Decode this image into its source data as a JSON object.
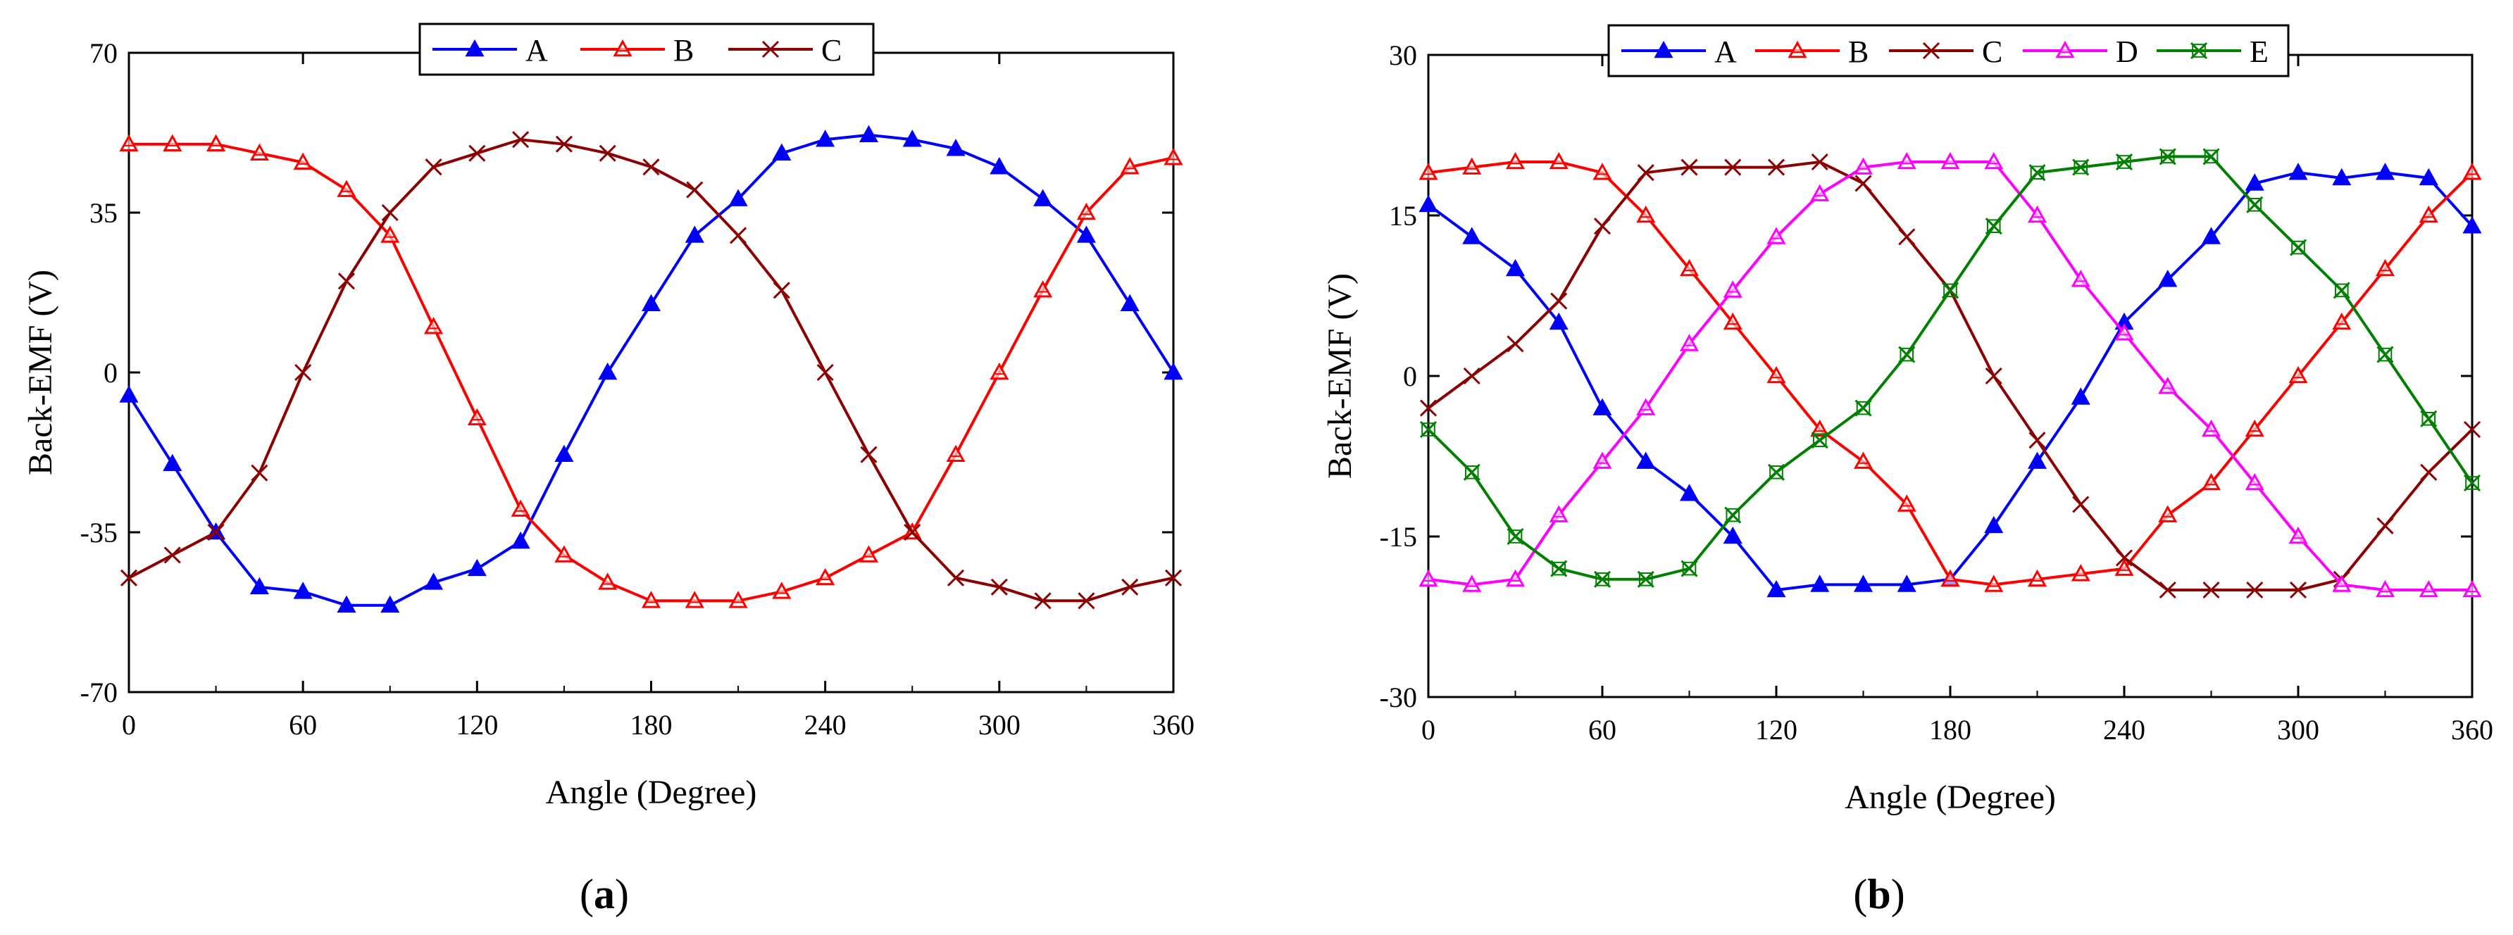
{
  "figure": {
    "panels": [
      {
        "label_open": "(",
        "label_letter": "a",
        "label_close": ")"
      },
      {
        "label_open": "(",
        "label_letter": "b",
        "label_close": ")"
      }
    ]
  },
  "chart_data": [
    {
      "type": "line",
      "panel": "a",
      "title": "",
      "xlabel": "Angle (Degree)",
      "ylabel": "Back-EMF (V)",
      "xlim": [
        0,
        360
      ],
      "ylim": [
        -70,
        70
      ],
      "xticks": [
        0,
        60,
        120,
        180,
        240,
        300,
        360
      ],
      "yticks": [
        -70,
        -35,
        0,
        35,
        70
      ],
      "xtick_labels": [
        "0",
        "60",
        "120",
        "180",
        "240",
        "300",
        "360"
      ],
      "ytick_labels": [
        "-70",
        "-35",
        "0",
        "35",
        "70"
      ],
      "legend_position": "top-center",
      "series": [
        {
          "name": "A",
          "color": "#0000ff",
          "marker": "triangle",
          "x": [
            0,
            15,
            30,
            45,
            60,
            75,
            90,
            105,
            120,
            135,
            150,
            165,
            180,
            195,
            210,
            225,
            240,
            255,
            270,
            285,
            300,
            315,
            330,
            345,
            360
          ],
          "y": [
            -5,
            -20,
            -35,
            -47,
            -48,
            -51,
            -51,
            -46,
            -43,
            -37,
            -18,
            0,
            15,
            30,
            38,
            48,
            51,
            52,
            51,
            49,
            45,
            38,
            30,
            15,
            0
          ]
        },
        {
          "name": "B",
          "color": "#ff0000",
          "marker": "triangle-open",
          "x": [
            0,
            15,
            30,
            45,
            60,
            75,
            90,
            105,
            120,
            135,
            150,
            165,
            180,
            195,
            210,
            225,
            240,
            255,
            270,
            285,
            300,
            315,
            330,
            345,
            360
          ],
          "y": [
            50,
            50,
            50,
            48,
            46,
            40,
            30,
            10,
            -10,
            -30,
            -40,
            -46,
            -50,
            -50,
            -50,
            -48,
            -45,
            -40,
            -35,
            -18,
            0,
            18,
            35,
            45,
            47
          ]
        },
        {
          "name": "C",
          "color": "#8b0000",
          "marker": "x",
          "x": [
            0,
            15,
            30,
            45,
            60,
            75,
            90,
            105,
            120,
            135,
            150,
            165,
            180,
            195,
            210,
            225,
            240,
            255,
            270,
            285,
            300,
            315,
            330,
            345,
            360
          ],
          "y": [
            -45,
            -40,
            -35,
            -22,
            0,
            20,
            35,
            45,
            48,
            51,
            50,
            48,
            45,
            40,
            30,
            18,
            0,
            -18,
            -35,
            -45,
            -47,
            -50,
            -50,
            -47,
            -45
          ]
        }
      ]
    },
    {
      "type": "line",
      "panel": "b",
      "title": "",
      "xlabel": "Angle (Degree)",
      "ylabel": "Back-EMF (V)",
      "xlim": [
        0,
        360
      ],
      "ylim": [
        -30,
        30
      ],
      "xticks": [
        0,
        60,
        120,
        180,
        240,
        300,
        360
      ],
      "yticks": [
        -30,
        -15,
        0,
        15,
        30
      ],
      "xtick_labels": [
        "0",
        "60",
        "120",
        "180",
        "240",
        "300",
        "360"
      ],
      "ytick_labels": [
        "-30",
        "-15",
        "0",
        "15",
        "30"
      ],
      "legend_position": "top-center",
      "series": [
        {
          "name": "A",
          "color": "#0000ff",
          "marker": "triangle",
          "x": [
            0,
            15,
            30,
            45,
            60,
            75,
            90,
            105,
            120,
            135,
            150,
            165,
            180,
            195,
            210,
            225,
            240,
            255,
            270,
            285,
            300,
            315,
            330,
            345,
            360
          ],
          "y": [
            16,
            13,
            10,
            5,
            -3,
            -8,
            -11,
            -15,
            -20,
            -19.5,
            -19.5,
            -19.5,
            -19,
            -14,
            -8,
            -2,
            5,
            9,
            13,
            18,
            19,
            18.5,
            19,
            18.5,
            14
          ]
        },
        {
          "name": "B",
          "color": "#ff0000",
          "marker": "triangle-open",
          "x": [
            0,
            15,
            30,
            45,
            60,
            75,
            90,
            105,
            120,
            135,
            150,
            165,
            180,
            195,
            210,
            225,
            240,
            255,
            270,
            285,
            300,
            315,
            330,
            345,
            360
          ],
          "y": [
            19,
            19.5,
            20,
            20,
            19,
            15,
            10,
            5,
            0,
            -5,
            -8,
            -12,
            -19,
            -19.5,
            -19,
            -18.5,
            -18,
            -13,
            -10,
            -5,
            0,
            5,
            10,
            15,
            19
          ]
        },
        {
          "name": "C",
          "color": "#8b0000",
          "marker": "x",
          "x": [
            0,
            15,
            30,
            45,
            60,
            75,
            90,
            105,
            120,
            135,
            150,
            165,
            180,
            195,
            210,
            225,
            240,
            255,
            270,
            285,
            300,
            315,
            330,
            345,
            360
          ],
          "y": [
            -3,
            0,
            3,
            7,
            14,
            19,
            19.5,
            19.5,
            19.5,
            20,
            18,
            13,
            8,
            0,
            -6,
            -12,
            -17,
            -20,
            -20,
            -20,
            -20,
            -19,
            -14,
            -9,
            -5
          ]
        },
        {
          "name": "D",
          "color": "#ff00ff",
          "marker": "triangle-open",
          "x": [
            0,
            15,
            30,
            45,
            60,
            75,
            90,
            105,
            120,
            135,
            150,
            165,
            180,
            195,
            210,
            225,
            240,
            255,
            270,
            285,
            300,
            315,
            330,
            345,
            360
          ],
          "y": [
            -19,
            -19.5,
            -19,
            -13,
            -8,
            -3,
            3,
            8,
            13,
            17,
            19.5,
            20,
            20,
            20,
            15,
            9,
            4,
            -1,
            -5,
            -10,
            -15,
            -19.5,
            -20,
            -20,
            -20
          ]
        },
        {
          "name": "E",
          "color": "#008000",
          "marker": "x-box",
          "x": [
            0,
            15,
            30,
            45,
            60,
            75,
            90,
            105,
            120,
            135,
            150,
            165,
            180,
            195,
            210,
            225,
            240,
            255,
            270,
            285,
            300,
            315,
            330,
            345,
            360
          ],
          "y": [
            -5,
            -9,
            -15,
            -18,
            -19,
            -19,
            -18,
            -13,
            -9,
            -6,
            -3,
            2,
            8,
            14,
            19,
            19.5,
            20,
            20.5,
            20.5,
            16,
            12,
            8,
            2,
            -4,
            -10
          ]
        }
      ]
    }
  ]
}
